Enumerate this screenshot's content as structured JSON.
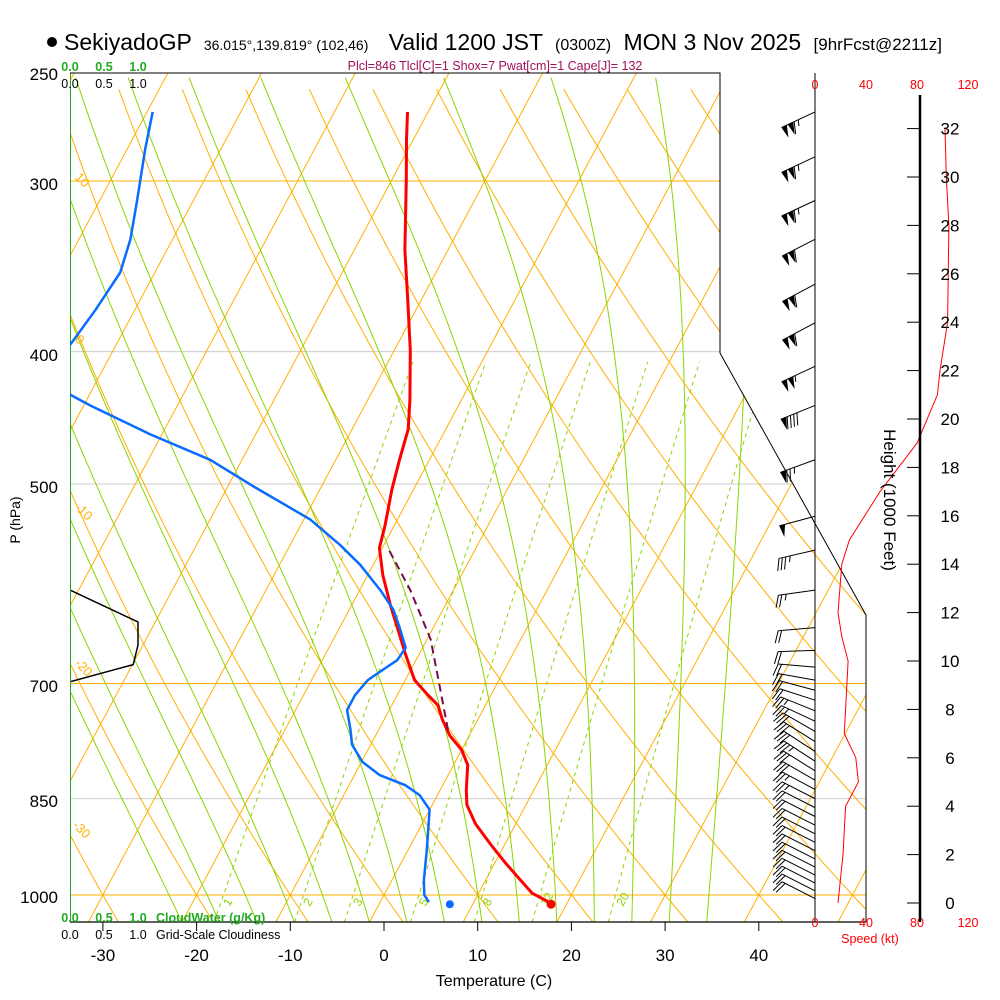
{
  "header": {
    "station": "SekiyadoGP",
    "coords": "36.015°,139.819° (102,46)",
    "valid": "Valid 1200 JST",
    "utc": "(0300Z)",
    "date": "MON 3 Nov 2025",
    "forecast": "[9hrFcst@2211z]",
    "params": "Plcl=846 Tlcl[C]=1 Shox=7 Pwat[cm]=1 Cape[J]= 132"
  },
  "colors": {
    "temperature": "#ff0000",
    "dewpoint": "#0a6cff",
    "parcel": "#7a0a4a",
    "isotherm": "#ffb000",
    "moist_adiabat": "#8cd400",
    "mixing_ratio": "#8cd400",
    "cloud_water": "#22aa22",
    "params": "#a0105a"
  },
  "chart_data": {
    "type": "line",
    "title": "SekiyadoGP skew-T log-P sounding",
    "xlabel": "Temperature (C)",
    "ylabel": "P (hPa)",
    "right_label": "Height (1000 Feet)",
    "speed_label": "Speed (kt)",
    "pressure_ticks": [
      "250",
      "300",
      "400",
      "500",
      "700",
      "850",
      "1000"
    ],
    "temperature_ticks": [
      "-30",
      "-20",
      "-10",
      "0",
      "10",
      "20",
      "30",
      "40"
    ],
    "height_ticks": [
      "0",
      "2",
      "4",
      "6",
      "8",
      "10",
      "12",
      "14",
      "16",
      "18",
      "20",
      "22",
      "24",
      "26",
      "28",
      "30",
      "32"
    ],
    "speed_ticks": [
      "0",
      "40",
      "80",
      "120"
    ],
    "cloud_ticks": [
      "0.0",
      "0.5",
      "1.0"
    ],
    "cloud_water_label": "CloudWater (g/Kg)",
    "cloudiness_label": "Grid-Scale Cloudiness",
    "ylim": [
      1047,
      250
    ],
    "isotherm_labels_right": [
      "0",
      "10",
      "20",
      "30"
    ],
    "isotherm_labels_left": [
      "10",
      "0",
      "-10",
      "-20",
      "-30"
    ],
    "mixing_ratio_labels": [
      "1",
      "2",
      "3",
      "5",
      "8",
      "12",
      "20"
    ],
    "series": [
      {
        "name": "temperature",
        "points": [
          [
            1014,
            18.3
          ],
          [
            997,
            15.7
          ],
          [
            975,
            13.7
          ],
          [
            946,
            11.0
          ],
          [
            916,
            8.3
          ],
          [
            887,
            5.7
          ],
          [
            859,
            3.7
          ],
          [
            838,
            2.8
          ],
          [
            803,
            1.5
          ],
          [
            783,
            0.0
          ],
          [
            764,
            -2.1
          ],
          [
            745,
            -3.7
          ],
          [
            726,
            -5.1
          ],
          [
            714,
            -6.7
          ],
          [
            696,
            -9.0
          ],
          [
            667,
            -11.4
          ],
          [
            640,
            -13.6
          ],
          [
            613,
            -15.9
          ],
          [
            583,
            -18.4
          ],
          [
            557,
            -20.3
          ],
          [
            536,
            -21.0
          ],
          [
            505,
            -22.3
          ],
          [
            480,
            -23.2
          ],
          [
            456,
            -24.0
          ],
          [
            434,
            -25.5
          ],
          [
            399,
            -28.3
          ],
          [
            366,
            -31.5
          ],
          [
            337,
            -34.6
          ],
          [
            299,
            -38.5
          ],
          [
            280,
            -40.7
          ],
          [
            267,
            -42.2
          ]
        ]
      },
      {
        "name": "dewpoint",
        "points": [
          [
            1012,
            5.2
          ],
          [
            1000,
            4.3
          ],
          [
            975,
            3.4
          ],
          [
            927,
            2.0
          ],
          [
            866,
            0.0
          ],
          [
            845,
            -1.9
          ],
          [
            831,
            -4.0
          ],
          [
            817,
            -7.3
          ],
          [
            799,
            -9.9
          ],
          [
            776,
            -12.0
          ],
          [
            757,
            -13.0
          ],
          [
            732,
            -14.5
          ],
          [
            714,
            -14.5
          ],
          [
            696,
            -14.0
          ],
          [
            682,
            -12.8
          ],
          [
            673,
            -12.0
          ],
          [
            659,
            -11.8
          ],
          [
            637,
            -13.6
          ],
          [
            618,
            -15.3
          ],
          [
            598,
            -17.8
          ],
          [
            573,
            -21.4
          ],
          [
            554,
            -24.7
          ],
          [
            531,
            -29.3
          ],
          [
            518,
            -32.8
          ],
          [
            503,
            -37.0
          ],
          [
            480,
            -43.4
          ],
          [
            460,
            -51.2
          ],
          [
            438,
            -59.3
          ],
          [
            430,
            -62.1
          ],
          [
            413,
            -67.5
          ],
          [
            395,
            -64.9
          ],
          [
            373,
            -64.2
          ],
          [
            350,
            -63.7
          ],
          [
            331,
            -64.5
          ],
          [
            310,
            -66.0
          ],
          [
            284,
            -68.1
          ],
          [
            267,
            -69.4
          ]
        ]
      },
      {
        "name": "parcel",
        "points": [
          [
            757,
            -2.6
          ],
          [
            650,
            -9.6
          ],
          [
            598,
            -14.6
          ],
          [
            557,
            -19.4
          ]
        ]
      }
    ],
    "surface": {
      "pressure": 1014,
      "temperature": 18.3,
      "dewpoint": 7.5
    },
    "cloudiness": [
      [
        598,
        0.0
      ],
      [
        631,
        1.0
      ],
      [
        656,
        1.0
      ],
      [
        678,
        0.93
      ],
      [
        698,
        0.0
      ]
    ],
    "cloud_water": 0.0,
    "wind_speed_profile": [
      [
        0,
        18
      ],
      [
        2,
        22
      ],
      [
        4,
        24
      ],
      [
        5,
        34
      ],
      [
        6,
        32
      ],
      [
        7,
        23
      ],
      [
        10,
        26
      ],
      [
        11,
        21
      ],
      [
        12,
        18
      ],
      [
        14,
        21
      ],
      [
        15,
        27
      ],
      [
        17,
        51
      ],
      [
        19,
        80
      ],
      [
        21,
        96
      ],
      [
        22,
        98
      ],
      [
        24,
        104
      ],
      [
        28,
        105
      ],
      [
        30,
        103
      ],
      [
        32,
        102
      ]
    ],
    "wind_barbs": [
      [
        267,
        245,
        115
      ],
      [
        288,
        245,
        115
      ],
      [
        310,
        245,
        115
      ],
      [
        331,
        243,
        110
      ],
      [
        357,
        242,
        110
      ],
      [
        381,
        242,
        108
      ],
      [
        410,
        245,
        105
      ],
      [
        438,
        248,
        90
      ],
      [
        480,
        250,
        75
      ],
      [
        528,
        255,
        50
      ],
      [
        559,
        257,
        35
      ],
      [
        598,
        262,
        25
      ],
      [
        637,
        265,
        20
      ],
      [
        662,
        268,
        18
      ],
      [
        681,
        275,
        18
      ],
      [
        696,
        280,
        20
      ],
      [
        708,
        285,
        22
      ],
      [
        720,
        288,
        22
      ],
      [
        733,
        292,
        24
      ],
      [
        746,
        295,
        26
      ],
      [
        759,
        300,
        28
      ],
      [
        772,
        302,
        30
      ],
      [
        785,
        303,
        32
      ],
      [
        798,
        303,
        33
      ],
      [
        811,
        302,
        32
      ],
      [
        824,
        300,
        28
      ],
      [
        837,
        298,
        26
      ],
      [
        850,
        297,
        24
      ],
      [
        863,
        297,
        22
      ],
      [
        876,
        297,
        22
      ],
      [
        889,
        297,
        22
      ],
      [
        902,
        297,
        22
      ],
      [
        915,
        297,
        22
      ],
      [
        928,
        297,
        20
      ],
      [
        941,
        297,
        20
      ],
      [
        954,
        297,
        20
      ],
      [
        967,
        297,
        18
      ],
      [
        980,
        297,
        18
      ],
      [
        993,
        297,
        18
      ],
      [
        1006,
        297,
        18
      ]
    ]
  }
}
